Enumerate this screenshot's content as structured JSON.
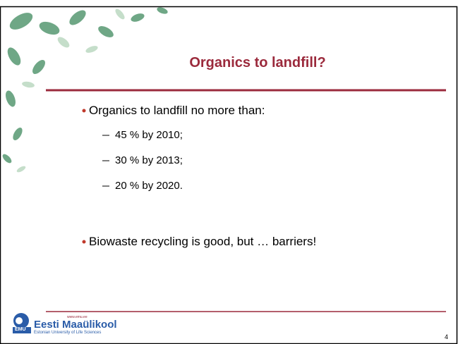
{
  "slide": {
    "title": "Organics to landfill?",
    "bullets": [
      {
        "text": "Organics to landfill no more than:",
        "sub": [
          "45 % by 2010;",
          "30 % by 2013;",
          "20 % by 2020."
        ]
      },
      {
        "text": "Biowaste recycling is good, but … barriers!",
        "sub": []
      }
    ],
    "footer": {
      "logo_mark": "EMU",
      "name": "Eesti Maaülikool",
      "url": "www.emu.ee",
      "tagline": "Estonian University of Life Sciences"
    },
    "page_number": "4"
  }
}
